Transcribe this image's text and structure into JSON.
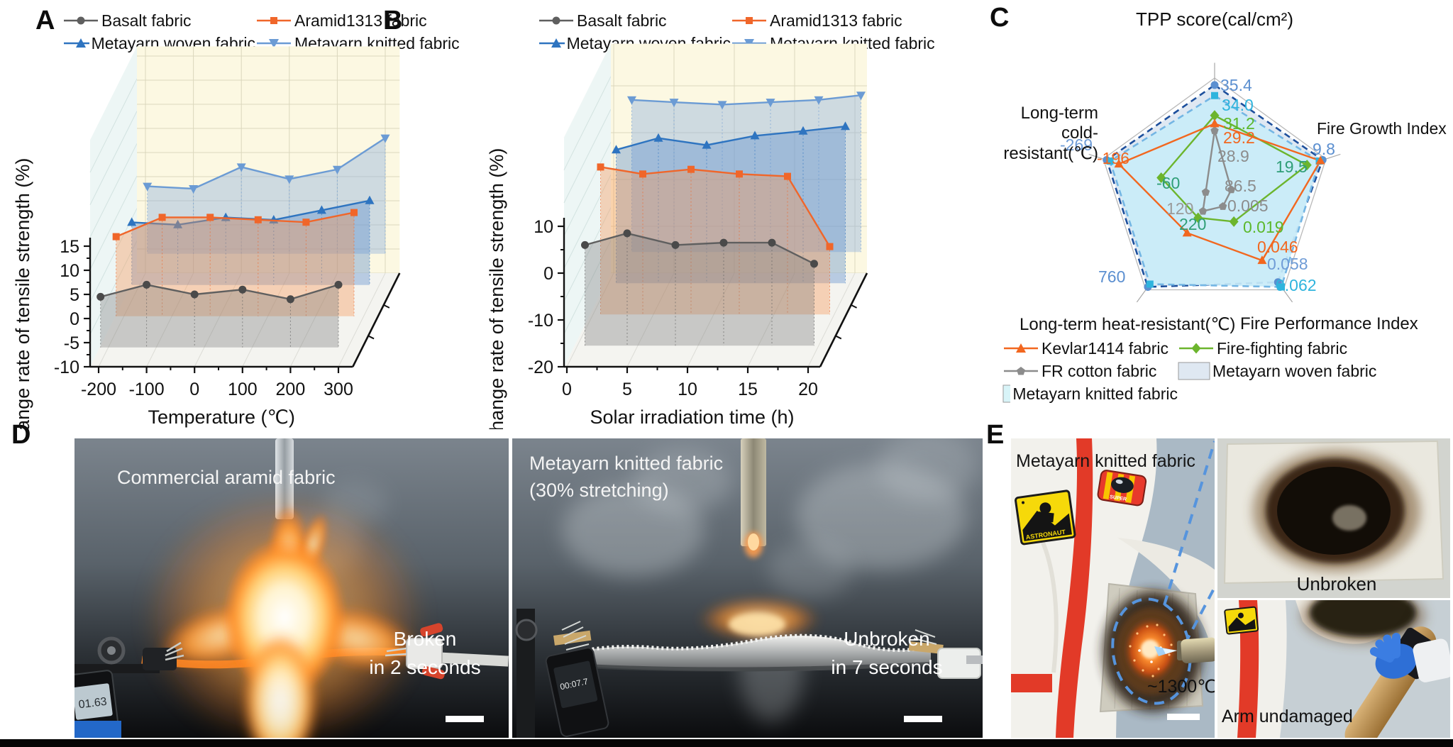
{
  "figure": {
    "panel_a": {
      "label": "A"
    },
    "panel_b": {
      "label": "B"
    },
    "panel_c": {
      "label": "C",
      "title": "TPP score(cal/cm²)",
      "axis_fire_growth": "Fire Growth Index",
      "axis_cold_line1": "Long-term",
      "axis_cold_line2": "cold-resistant(℃)",
      "axis_heat": "Long-term heat-resistant(℃)",
      "axis_fpi": "Fire Performance Index"
    },
    "panel_d": {
      "label": "D",
      "left": {
        "title": "Commercial aramid fabric",
        "result_line1": "Broken",
        "result_line2": "in 2 seconds",
        "timer": "01.63"
      },
      "right": {
        "title": "Metayarn knitted fabric",
        "subtitle": "(30% stretching)",
        "result_line1": "Unbroken",
        "result_line2": "in 7 seconds",
        "timer": "00:07.7"
      }
    },
    "panel_e": {
      "label": "E",
      "title": "Metayarn knitted fabric",
      "temperature": "~1300℃",
      "inset_top": "Unbroken",
      "inset_bottom": "Arm undamaged",
      "badge_text": "ASTRONAUT",
      "badge2_text": "SUPER"
    }
  },
  "legend_ab": [
    {
      "label": "Basalt fabric",
      "color": "#5f5f5f",
      "marker": "circle"
    },
    {
      "label": "Aramid1313 fabric",
      "color": "#f0662a",
      "marker": "square"
    },
    {
      "label": "Metayarn woven fabric",
      "color": "#2e74c0",
      "marker": "triangle-up"
    },
    {
      "label": "Metayarn knitted fabric",
      "color": "#6b9bd4",
      "marker": "triangle-down"
    }
  ],
  "legend_c": [
    {
      "label": "Kevlar1414 fabric",
      "type": "line",
      "color": "#f2671f",
      "marker": "triangle-up"
    },
    {
      "label": "Fire-fighting fabric",
      "type": "line",
      "color": "#6cb52d",
      "marker": "diamond"
    },
    {
      "label": "FR cotton fabric",
      "type": "line",
      "color": "#8c8c8c",
      "marker": "pentagon"
    },
    {
      "label": "Metayarn woven fabric",
      "type": "box",
      "color": "#dfe8f2"
    },
    {
      "label": "Metayarn knitted fabric",
      "type": "box",
      "color": "#d8f4f8"
    }
  ],
  "chart_data": [
    {
      "id": "A",
      "type": "line",
      "projection": "3d-waterfall",
      "xlabel": "Temperature (℃)",
      "ylabel": "Change rate of tensile strength (%)",
      "xlim": [
        -218,
        330
      ],
      "ylim": [
        -10,
        15
      ],
      "xticks": [
        -200,
        -100,
        0,
        100,
        200,
        300
      ],
      "yticks": [
        -10,
        -5,
        0,
        5,
        10,
        15
      ],
      "x": [
        -196,
        -100,
        0,
        100,
        200,
        300
      ],
      "series": [
        {
          "name": "Basalt fabric",
          "depth": 0,
          "marker": "circle",
          "color": "#5f5f5f",
          "mcolor": "#4a4a4a",
          "fill": "rgba(128,128,128,0.38)",
          "values": [
            4.5,
            7,
            5,
            6,
            4,
            7
          ]
        },
        {
          "name": "Aramid1313 fabric",
          "depth": 1,
          "marker": "square",
          "color": "#f0662a",
          "mcolor": "#f0662a",
          "fill": "rgba(246,150,85,0.38)",
          "values": [
            10.5,
            14.5,
            14.5,
            14,
            13.5,
            15.5
          ]
        },
        {
          "name": "Metayarn woven fabric",
          "depth": 2,
          "marker": "triangle-up",
          "color": "#2e74c0",
          "mcolor": "#2e74c0",
          "fill": "rgba(88,138,203,0.38)",
          "values": [
            7,
            6.5,
            8,
            7.5,
            9.5,
            11.5
          ]
        },
        {
          "name": "Metayarn knitted fabric",
          "depth": 3,
          "marker": "triangle-down",
          "color": "#6b9bd4",
          "mcolor": "#6b9bd4",
          "fill": "rgba(142,176,221,0.42)",
          "values": [
            8,
            7.5,
            12,
            9.5,
            11.5,
            18
          ]
        }
      ]
    },
    {
      "id": "B",
      "type": "line",
      "projection": "3d-waterfall",
      "xlabel": "Solar irradiation time (h)",
      "ylabel": "Change rate of tensile strength (%)",
      "xlim": [
        0,
        21
      ],
      "ylim": [
        -20,
        10
      ],
      "xticks": [
        0,
        5,
        10,
        15,
        20
      ],
      "yticks": [
        -20,
        -10,
        0,
        10
      ],
      "x": [
        1.5,
        5,
        9,
        13,
        17,
        20.5
      ],
      "series": [
        {
          "name": "Basalt fabric",
          "depth": 0,
          "marker": "circle",
          "color": "#5f5f5f",
          "mcolor": "#4a4a4a",
          "fill": "rgba(128,128,128,0.38)",
          "values": [
            6,
            8.5,
            6,
            6.5,
            6.5,
            2
          ]
        },
        {
          "name": "Aramid1313 fabric",
          "depth": 1,
          "marker": "square",
          "color": "#f0662a",
          "mcolor": "#f0662a",
          "fill": "rgba(246,150,85,0.38)",
          "values": [
            16,
            14.5,
            15.5,
            14.5,
            14,
            -1
          ]
        },
        {
          "name": "Metayarn woven fabric",
          "depth": 2,
          "marker": "triangle-up",
          "color": "#2e74c0",
          "mcolor": "#2e74c0",
          "fill": "rgba(88,138,203,0.38)",
          "values": [
            13,
            15.5,
            14,
            16,
            17,
            18
          ]
        },
        {
          "name": "Metayarn knitted fabric",
          "depth": 3,
          "marker": "triangle-down",
          "color": "#6b9bd4",
          "mcolor": "#6b9bd4",
          "fill": "rgba(142,176,221,0.42)",
          "values": [
            17,
            16.5,
            16,
            16.5,
            17,
            18
          ]
        }
      ]
    },
    {
      "id": "C",
      "type": "radar",
      "title": "TPP score(cal/cm²)",
      "axes": [
        "TPP score(cal/cm²)",
        "Fire Growth Index",
        "Fire Performance Index",
        "Long-term heat-resistant(℃)",
        "Long-term cold-resistant(℃)"
      ],
      "series": [
        {
          "name": "Metayarn woven fabric",
          "display": "area",
          "color": "#1d4f9c",
          "fill": "#dfe8f2",
          "marker": "circle",
          "mcolor": "#5b8fd0",
          "axis_values": {
            "tpp": 35.4,
            "fire_growth": 9.8,
            "fpi": 0.058,
            "heat": 760,
            "cold": -269
          },
          "radii": [
            0.94,
            0.97,
            0.92,
            0.97,
            0.97
          ]
        },
        {
          "name": "Metayarn knitted fabric",
          "display": "area",
          "color": "#74b6e4",
          "fill": "#c9ecf8",
          "marker": "square",
          "mcolor": "#2fb4dd",
          "axis_values": {
            "tpp": 34.0,
            "fire_growth": 9.8,
            "fpi": 0.062,
            "heat": 760,
            "cold": -269
          },
          "radii": [
            0.85,
            0.94,
            0.97,
            0.94,
            0.94
          ]
        },
        {
          "name": "FR cotton fabric",
          "display": "line",
          "color": "#8c8c8c",
          "marker": "pentagon",
          "mcolor": "#8c8c8c",
          "axis_values": {
            "tpp": 28.9,
            "fire_growth": 86.5,
            "fpi": 0.005,
            "heat": 120
          },
          "radii": [
            0.55,
            0.15,
            0.12,
            0.17,
            0.08
          ]
        },
        {
          "name": "Fire-fighting fabric",
          "display": "line",
          "color": "#6cb52d",
          "marker": "diamond",
          "mcolor": "#6cb52d",
          "axis_values": {
            "tpp": 31.2,
            "fire_growth": 19.5,
            "fpi": 0.019,
            "heat": 220,
            "cold": -60
          },
          "radii": [
            0.68,
            0.83,
            0.28,
            0.24,
            0.48
          ]
        },
        {
          "name": "Kevlar1414 fabric",
          "display": "line",
          "color": "#f2671f",
          "marker": "triangle-up",
          "mcolor": "#f2671f",
          "axis_values": {
            "tpp": 29.2,
            "fpi": 0.046,
            "cold": -196
          },
          "radii": [
            0.61,
            0.95,
            0.69,
            0.4,
            0.86
          ]
        }
      ],
      "value_labels": [
        {
          "text": "35.4",
          "color": "#5b8fd0"
        },
        {
          "text": "34.0",
          "color": "#2fb4dd"
        },
        {
          "text": "31.2",
          "color": "#5cb82c"
        },
        {
          "text": "29.2",
          "color": "#f2671f"
        },
        {
          "text": "28.9",
          "color": "#8c8c8c"
        },
        {
          "text": "9.8",
          "color": "#5b8fd0"
        },
        {
          "text": "19.5",
          "color": "#2f9e77"
        },
        {
          "text": "86.5",
          "color": "#8c8c8c"
        },
        {
          "text": "-269",
          "color": "#6f9cd6"
        },
        {
          "text": "-196",
          "color": "#f2671f"
        },
        {
          "text": "-60",
          "color": "#2f9e77"
        },
        {
          "text": "120",
          "color": "#9a9a9a"
        },
        {
          "text": "220",
          "color": "#2f9e77"
        },
        {
          "text": "0.005",
          "color": "#8c8c8c"
        },
        {
          "text": "0.019",
          "color": "#5cb82c"
        },
        {
          "text": "0.046",
          "color": "#f2671f"
        },
        {
          "text": "0.058",
          "color": "#6f9cd6"
        },
        {
          "text": "0.062",
          "color": "#2fb4dd"
        },
        {
          "text": "760",
          "color": "#5b8fd0"
        }
      ]
    }
  ]
}
